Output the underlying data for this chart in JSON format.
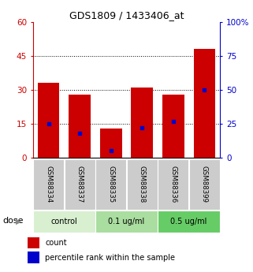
{
  "title": "GDS1809 / 1433406_at",
  "samples": [
    "GSM88334",
    "GSM88337",
    "GSM88335",
    "GSM88338",
    "GSM88336",
    "GSM88399"
  ],
  "counts": [
    33,
    28,
    13,
    31,
    28,
    48
  ],
  "percentile_ranks": [
    25,
    18,
    5,
    22,
    27,
    50
  ],
  "groups": [
    {
      "label": "control",
      "indices": [
        0,
        1
      ]
    },
    {
      "label": "0.1 ug/ml",
      "indices": [
        2,
        3
      ]
    },
    {
      "label": "0.5 ug/ml",
      "indices": [
        4,
        5
      ]
    }
  ],
  "group_colors": [
    "#d8f0d0",
    "#aadda0",
    "#66cc66"
  ],
  "ylim_left": [
    0,
    60
  ],
  "ylim_right": [
    0,
    100
  ],
  "yticks_left": [
    0,
    15,
    30,
    45,
    60
  ],
  "yticks_right": [
    0,
    25,
    50,
    75,
    100
  ],
  "bar_color": "#cc0000",
  "dot_color": "#0000cc",
  "background_color": "#ffffff",
  "left_axis_color": "#cc0000",
  "right_axis_color": "#0000cc",
  "sample_bg": "#cccccc",
  "legend_count_label": "count",
  "legend_percentile_label": "percentile rank within the sample"
}
